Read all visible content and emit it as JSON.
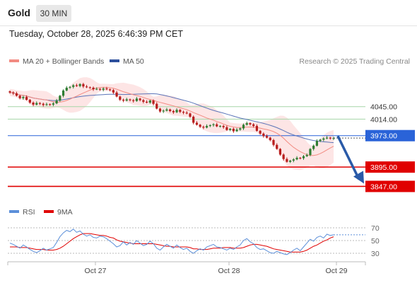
{
  "header": {
    "symbol": "Gold",
    "timeframe": "30 MIN",
    "timestamp": "Tuesday, October 28, 2025 6:46:39 PM CET"
  },
  "legend": {
    "ma_bollinger": "MA 20 + Bollinger Bands",
    "ma50": "MA 50",
    "credit": "Research © 2025 Trading Central",
    "rsi": "RSI",
    "rsi_ma": "9MA"
  },
  "colors": {
    "candle_up": "#2e7d32",
    "candle_down": "#b71c1c",
    "ma20": "#f28b82",
    "bollinger_fill": "#fde0e0",
    "ma50": "#5b74b8",
    "resistance": "#a5d6a7",
    "pivot": "#2a63d8",
    "support": "#e00000",
    "rsi": "#5b8fd9",
    "rsi_ma": "#e00000"
  },
  "chart_data": [
    {
      "type": "candlestick",
      "x_ticks": [
        "Oct 27",
        "Oct 28",
        "Oct 29"
      ],
      "ylim": [
        3825,
        4120
      ],
      "close_series": [
        4080,
        4078,
        4072,
        4066,
        4069,
        4062,
        4055,
        4050,
        4054,
        4052,
        4049,
        4051,
        4050,
        4053,
        4060,
        4072,
        4085,
        4092,
        4094,
        4098,
        4096,
        4101,
        4095,
        4093,
        4092,
        4088,
        4089,
        4087,
        4090,
        4088,
        4086,
        4080,
        4070,
        4062,
        4060,
        4063,
        4061,
        4059,
        4065,
        4061,
        4057,
        4055,
        4060,
        4052,
        4040,
        4033,
        4035,
        4038,
        4034,
        4031,
        4037,
        4032,
        4030,
        4028,
        4020,
        4005,
        4000,
        3995,
        3993,
        3997,
        3999,
        4001,
        3996,
        3997,
        3994,
        3987,
        3990,
        3984,
        3988,
        3991,
        4000,
        4004,
        4001,
        3997,
        3985,
        3978,
        3972,
        3968,
        3962,
        3950,
        3940,
        3926,
        3915,
        3908,
        3911,
        3914,
        3918,
        3917,
        3922,
        3925,
        3940,
        3948,
        3960,
        3963,
        3966,
        3968,
        3966,
        3967
      ],
      "levels": [
        {
          "label": "4045.00",
          "value": 4045,
          "kind": "resistance"
        },
        {
          "label": "4014.00",
          "value": 4014,
          "kind": "resistance"
        },
        {
          "label": "3973.00",
          "value": 3973,
          "kind": "pivot"
        },
        {
          "label": "3895.00",
          "value": 3895,
          "kind": "support"
        },
        {
          "label": "3847.00",
          "value": 3847,
          "kind": "support"
        }
      ],
      "series": [
        {
          "name": "MA 20 + Bollinger Bands"
        },
        {
          "name": "MA 50"
        }
      ],
      "forecast_target": 3847
    },
    {
      "type": "line",
      "ylim": [
        20,
        80
      ],
      "y_ticks": [
        "70",
        "50",
        "30"
      ],
      "rsi": [
        46,
        44,
        41,
        38,
        43,
        40,
        36,
        33,
        31,
        34,
        38,
        35,
        37,
        39,
        47,
        56,
        62,
        66,
        64,
        68,
        63,
        65,
        60,
        57,
        59,
        55,
        54,
        57,
        56,
        53,
        49,
        45,
        40,
        42,
        48,
        43,
        47,
        44,
        50,
        46,
        42,
        44,
        49,
        45,
        38,
        35,
        40,
        44,
        41,
        38,
        43,
        39,
        36,
        38,
        33,
        30,
        34,
        37,
        35,
        40,
        42,
        44,
        40,
        39,
        37,
        35,
        38,
        36,
        40,
        43,
        50,
        53,
        48,
        45,
        39,
        36,
        37,
        34,
        31,
        30,
        33,
        31,
        29,
        28,
        31,
        35,
        38,
        34,
        40,
        46,
        52,
        49,
        55,
        57,
        54,
        60,
        58,
        59
      ],
      "rsi_ma": [
        40,
        40,
        40,
        39,
        39,
        39,
        38,
        37,
        36,
        36,
        36,
        35,
        35,
        35,
        36,
        38,
        41,
        45,
        49,
        53,
        56,
        59,
        61,
        61,
        61,
        60,
        59,
        58,
        58,
        57,
        55,
        54,
        51,
        49,
        48,
        47,
        46,
        45,
        45,
        45,
        45,
        45,
        45,
        45,
        44,
        43,
        42,
        41,
        41,
        40,
        40,
        40,
        40,
        40,
        39,
        37,
        37,
        36,
        36,
        36,
        37,
        38,
        38,
        38,
        39,
        39,
        39,
        38,
        38,
        38,
        39,
        41,
        43,
        44,
        44,
        43,
        42,
        41,
        39,
        37,
        36,
        35,
        34,
        33,
        32,
        32,
        32,
        32,
        33,
        35,
        38,
        41,
        43,
        46,
        49,
        51,
        54,
        56
      ]
    }
  ]
}
